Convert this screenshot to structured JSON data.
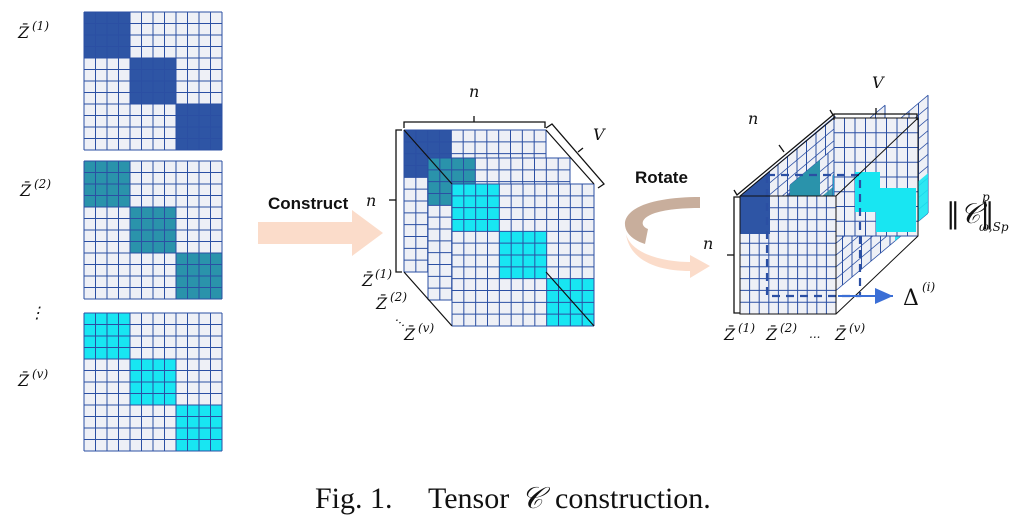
{
  "labels": {
    "zbar": "Z̄",
    "sup_1": "(1)",
    "sup_2": "(2)",
    "sup_v": "(v)",
    "vdots": "⋮",
    "hdots": "⋯",
    "ellipsis": "...",
    "n": "n",
    "V": "V",
    "construct": "Construct",
    "rotate": "Rotate",
    "delta": "Δ",
    "delta_sup": "(i)",
    "norm_main": "‖𝒞‖",
    "norm_sup": "p",
    "norm_sub": "ω,Sp"
  },
  "caption": {
    "prefix": "Fig. 1.",
    "text_before": "Tensor",
    "symbol": "𝒞",
    "text_after": "construction."
  },
  "colors": {
    "block_dark": "#2e55a5",
    "block_teal": "#2a93ab",
    "block_cyan": "#18e6f2",
    "cell_bg": "#eef0f6",
    "grid": "#2b4fa3",
    "arrow_peach": "#fbdcca",
    "arrow_brown": "#c8ae9c",
    "axis_arrow": "#3b6fd6"
  }
}
